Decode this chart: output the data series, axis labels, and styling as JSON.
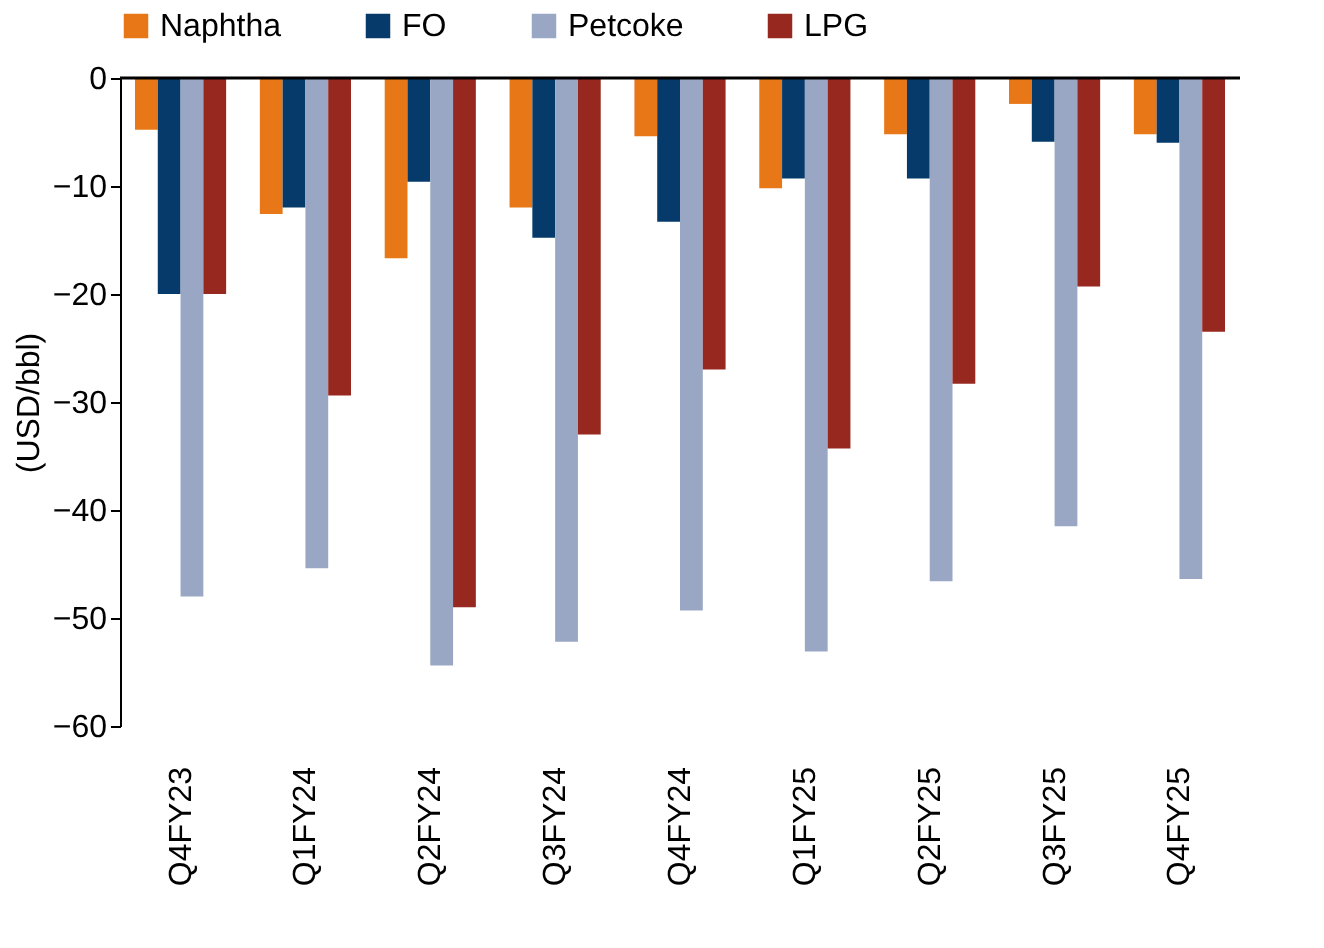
{
  "chart_data": {
    "type": "bar",
    "ylabel": "(USD/bbl)",
    "categories": [
      "Q4FY23",
      "Q1FY24",
      "Q2FY24",
      "Q3FY24",
      "Q4FY24",
      "Q1FY25",
      "Q2FY25",
      "Q3FY25",
      "Q4FY25"
    ],
    "series": [
      {
        "name": "Naphtha",
        "color": "#e87817",
        "values": [
          -4.8,
          -12.6,
          -16.7,
          -12,
          -5.4,
          -10.2,
          -5.2,
          -2.4,
          -5.2
        ]
      },
      {
        "name": "FO",
        "color": "#063a6b",
        "values": [
          -20,
          -12,
          -9.6,
          -14.8,
          -13.3,
          -9.3,
          -9.3,
          -5.9,
          -6
        ]
      },
      {
        "name": "Petcoke",
        "color": "#99a7c4",
        "values": [
          -48,
          -45.4,
          -54.4,
          -52.2,
          -49.3,
          -53.1,
          -46.6,
          -41.5,
          -46.4
        ]
      },
      {
        "name": "LPG",
        "color": "#962820",
        "values": [
          -20,
          -29.4,
          -49,
          -33,
          -27,
          -34.3,
          -28.3,
          -19.3,
          -23.5
        ]
      }
    ],
    "ylim": [
      -60,
      0
    ],
    "yticks": [
      -60,
      -50,
      -40,
      -30,
      -20,
      -10,
      0
    ],
    "grid": false,
    "legend": "top"
  }
}
